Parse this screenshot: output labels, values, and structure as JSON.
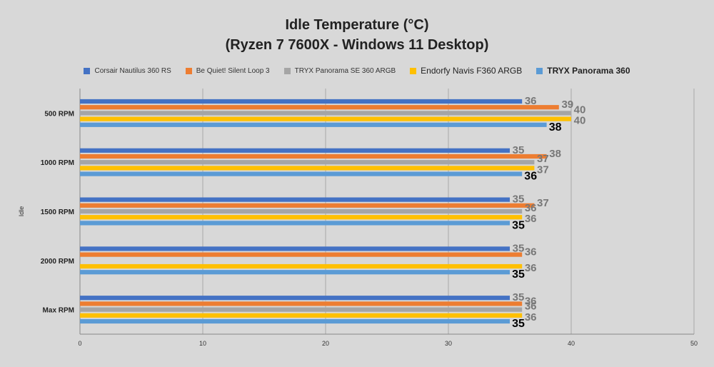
{
  "chart_data": {
    "type": "bar",
    "orientation": "horizontal",
    "title": "Idle Temperature (°C)",
    "subtitle": "(Ryzen 7 7600X - Windows 11 Desktop)",
    "ylabel": "Idle",
    "xlabel": "",
    "xlim": [
      0,
      50
    ],
    "xticks": [
      0,
      10,
      20,
      30,
      40,
      50
    ],
    "grid": true,
    "legend_position": "top",
    "categories": [
      "500 RPM",
      "1000 RPM",
      "1500 RPM",
      "2000 RPM",
      "Max RPM"
    ],
    "series": [
      {
        "name": "Corsair Nautilus 360 RS",
        "color": "#4472c4",
        "values": [
          36,
          35,
          35,
          35,
          35
        ],
        "labels": [
          "36",
          "35",
          "35",
          "35",
          "35"
        ]
      },
      {
        "name": "Be Quiet! Silent Loop 3",
        "color": "#ed7d31",
        "values": [
          39,
          38,
          37,
          36,
          36
        ],
        "labels": [
          "39",
          "38",
          "37",
          "36",
          "36"
        ]
      },
      {
        "name": "TRYX Panorama SE 360 ARGB",
        "color": "#a5a5a5",
        "values": [
          40,
          37,
          36,
          null,
          36
        ],
        "labels": [
          "40",
          "37",
          "36",
          "",
          "36"
        ]
      },
      {
        "name": "Endorfy Navis F360 ARGB",
        "color": "#ffc000",
        "values": [
          40,
          37,
          36,
          36,
          36
        ],
        "labels": [
          "40",
          "37",
          "36",
          "36",
          "36"
        ]
      },
      {
        "name": "TRYX Panorama 360",
        "color": "#5b9bd5",
        "values": [
          38,
          36,
          35,
          35,
          35
        ],
        "labels": [
          "38",
          "36",
          "35",
          "35",
          "35"
        ]
      }
    ]
  }
}
